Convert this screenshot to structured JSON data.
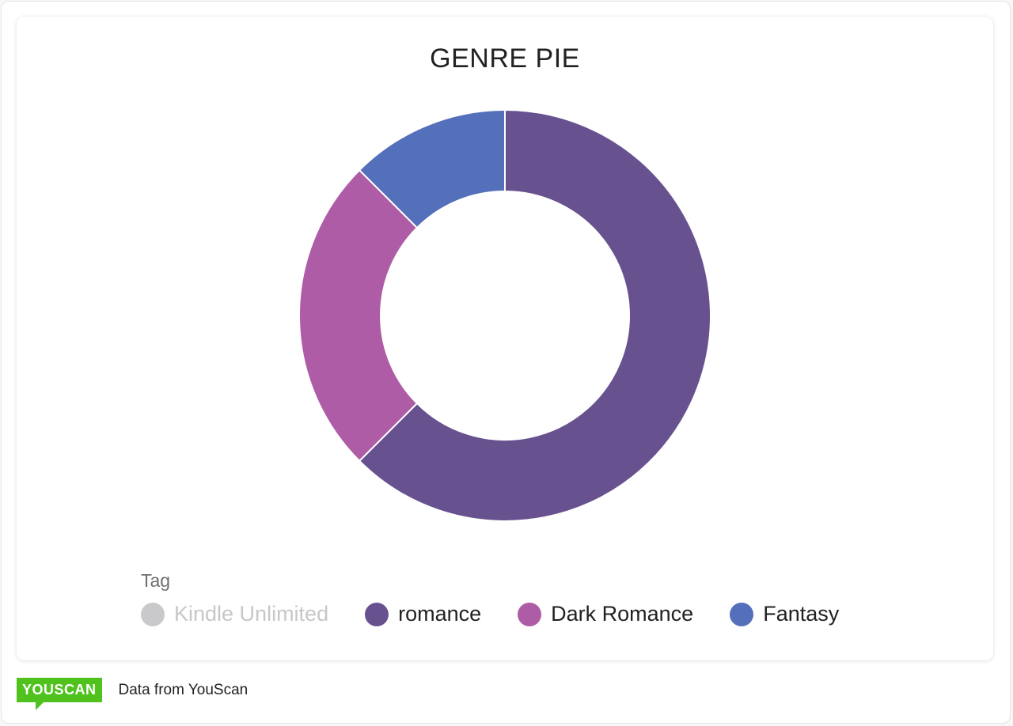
{
  "chart_data": {
    "type": "pie",
    "title": "GENRE PIE",
    "legend_title": "Tag",
    "legend_position": "bottom-left",
    "donut": true,
    "series": [
      {
        "name": "Kindle Unlimited",
        "value": 0,
        "color": "#c9c9cb",
        "hidden": true
      },
      {
        "name": "romance",
        "value": 62.5,
        "color": "#67528f"
      },
      {
        "name": "Dark Romance",
        "value": 25,
        "color": "#ae5ca6"
      },
      {
        "name": "Fantasy",
        "value": 12.5,
        "color": "#5470ba"
      }
    ]
  },
  "footer": {
    "logo_text": "YOUSCAN",
    "source_text": "Data from YouScan",
    "logo_color": "#4fc21d"
  }
}
